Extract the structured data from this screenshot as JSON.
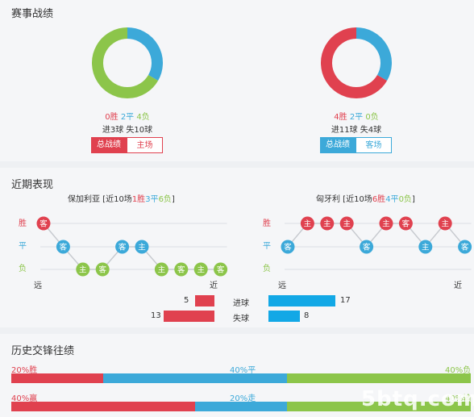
{
  "record": {
    "title": "赛事战绩",
    "left": {
      "win": "0胜",
      "draw": "2平",
      "loss": "4负",
      "goals": "进3球 失10球",
      "tab_total": "总战绩",
      "tab_side": "主场",
      "donut": {
        "red": 0,
        "blue": 2,
        "green": 4
      }
    },
    "right": {
      "win": "4胜",
      "draw": "2平",
      "loss": "0负",
      "goals": "进11球 失4球",
      "tab_total": "总战绩",
      "tab_side": "客场",
      "donut": {
        "red": 4,
        "blue": 2,
        "green": 0
      }
    }
  },
  "recent": {
    "title": "近期表现",
    "left": {
      "team": "保加利亚",
      "summary_prefix": " [近10场",
      "wins": "1胜",
      "draws": "3平",
      "losses": "6负",
      "summary_suffix": "]",
      "far": "远",
      "near": "近"
    },
    "right": {
      "team": "匈牙利",
      "summary_prefix": " [近10场",
      "wins": "6胜",
      "draws": "4平",
      "losses": "0负",
      "summary_suffix": "]",
      "far": "远",
      "near": "近"
    },
    "y_labels": {
      "win": "胜",
      "draw": "平",
      "loss": "负"
    },
    "left_seq": [
      [
        "W",
        "客"
      ],
      [
        "D",
        "客"
      ],
      [
        "L",
        "主"
      ],
      [
        "L",
        "客"
      ],
      [
        "D",
        "客"
      ],
      [
        "D",
        "主"
      ],
      [
        "L",
        "主"
      ],
      [
        "L",
        "客"
      ],
      [
        "L",
        "主"
      ],
      [
        "L",
        "客"
      ]
    ],
    "right_seq": [
      [
        "D",
        "客"
      ],
      [
        "W",
        "主"
      ],
      [
        "W",
        "主"
      ],
      [
        "W",
        "主"
      ],
      [
        "D",
        "客"
      ],
      [
        "W",
        "主"
      ],
      [
        "W",
        "客"
      ],
      [
        "D",
        "主"
      ],
      [
        "W",
        "主"
      ],
      [
        "D",
        "客"
      ]
    ],
    "goals_for_label": "进球",
    "goals_against_label": "失球",
    "left_goals_for": "5",
    "left_goals_against": "13",
    "right_goals_for": "17",
    "right_goals_against": "8",
    "colors": {
      "win": "#e0414f",
      "draw": "#3ca9d9",
      "loss": "#8cc54a"
    }
  },
  "history": {
    "title": "历史交锋往绩",
    "row1": {
      "left": "20%胜",
      "mid": "40%平",
      "right": "40%负",
      "p": [
        20,
        40,
        40
      ]
    },
    "row2": {
      "left": "40%赢",
      "mid": "20%走",
      "right": "40%输",
      "p": [
        40,
        20,
        40
      ]
    }
  },
  "watermark": "5btq.com"
}
